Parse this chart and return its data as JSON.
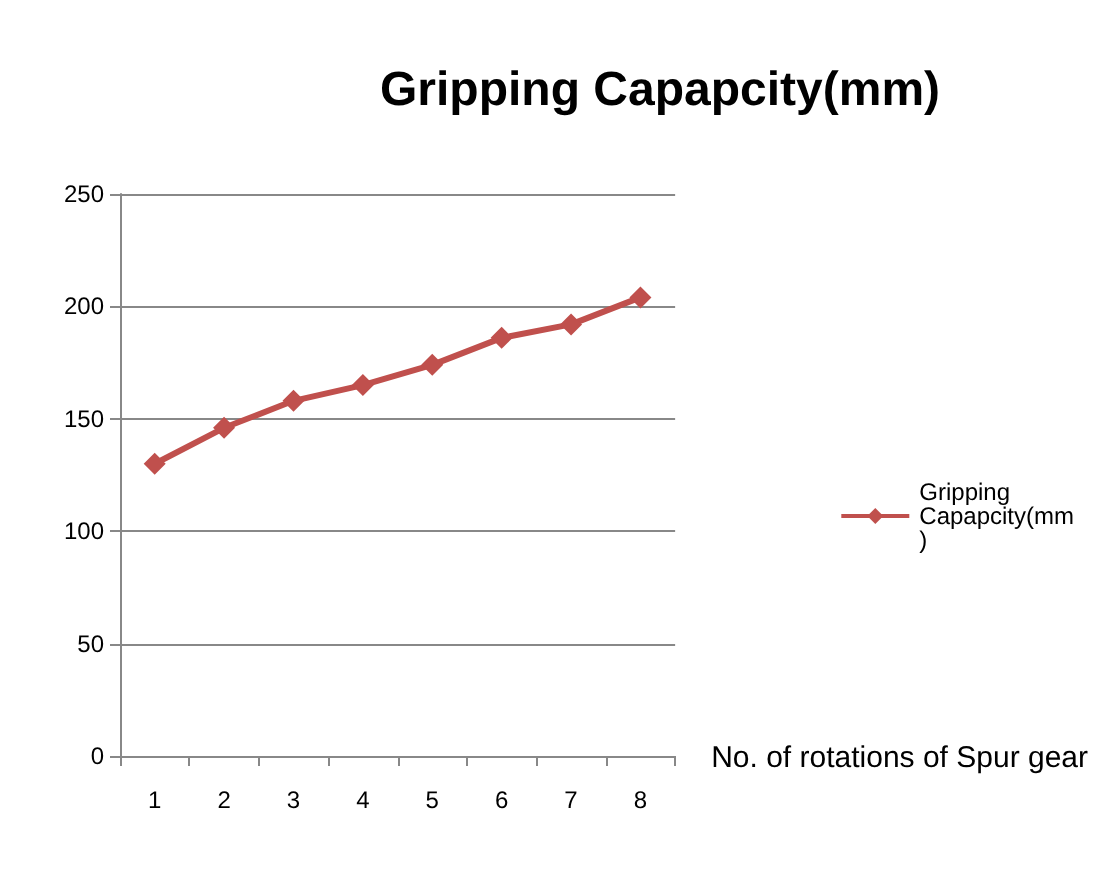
{
  "chart_data": {
    "type": "line",
    "title": "Gripping Capapcity(mm)",
    "xlabel": "No. of rotations of Spur gear",
    "categories": [
      "1",
      "2",
      "3",
      "4",
      "5",
      "6",
      "7",
      "8"
    ],
    "series": [
      {
        "name": "Gripping Capapcity(mm)",
        "color": "#c0504d",
        "values": [
          130,
          146,
          158,
          165,
          174,
          186,
          192,
          204
        ]
      }
    ],
    "ylim": [
      0,
      250
    ],
    "yticks": [
      0,
      50,
      100,
      150,
      200,
      250
    ],
    "grid": "y",
    "legend": "right",
    "marker": "diamond",
    "line_style": "solid"
  }
}
